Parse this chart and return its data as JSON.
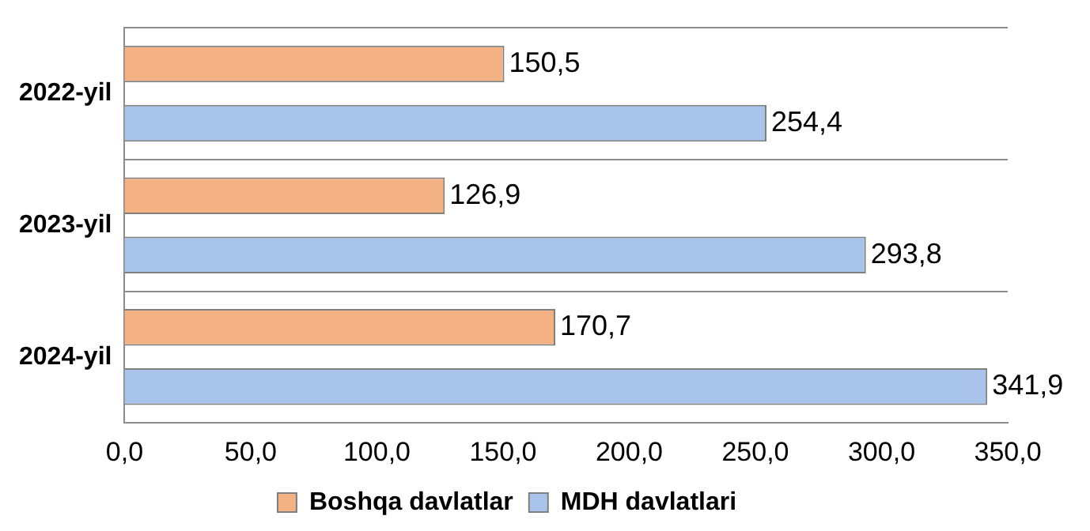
{
  "chart_data": {
    "type": "bar",
    "orientation": "horizontal",
    "categories": [
      "2022-yil",
      "2023-yil",
      "2024-yil"
    ],
    "series": [
      {
        "name": "Boshqa davlatlar",
        "color": "#f4b183",
        "values": [
          150.5,
          126.9,
          170.7
        ],
        "value_labels": [
          "150,5",
          "126,9",
          "170,7"
        ]
      },
      {
        "name": "MDH davlatlari",
        "color": "#a9c4eb",
        "values": [
          254.4,
          293.8,
          341.9
        ],
        "value_labels": [
          "254,4",
          "293,8",
          "341,9"
        ]
      }
    ],
    "xlim": [
      0,
      350
    ],
    "xticks": [
      {
        "value": 0,
        "label": "0,0"
      },
      {
        "value": 50,
        "label": "50,0"
      },
      {
        "value": 100,
        "label": "100,0"
      },
      {
        "value": 150,
        "label": "150,0"
      },
      {
        "value": 200,
        "label": "200,0"
      },
      {
        "value": 250,
        "label": "250,0"
      },
      {
        "value": 300,
        "label": "300,0"
      },
      {
        "value": 350,
        "label": "350,0"
      }
    ],
    "grid": "y",
    "legend": "bottom"
  }
}
